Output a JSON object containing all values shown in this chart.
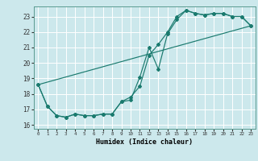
{
  "title": "",
  "xlabel": "Humidex (Indice chaleur)",
  "bg_color": "#cce8ec",
  "grid_color": "#ffffff",
  "line_color": "#1a7a6e",
  "xlim": [
    -0.5,
    23.5
  ],
  "ylim": [
    15.75,
    23.65
  ],
  "yticks": [
    16,
    17,
    18,
    19,
    20,
    21,
    22,
    23
  ],
  "xticks": [
    0,
    1,
    2,
    3,
    4,
    5,
    6,
    7,
    8,
    9,
    10,
    11,
    12,
    13,
    14,
    15,
    16,
    17,
    18,
    19,
    20,
    21,
    22,
    23
  ],
  "series1_x": [
    0,
    1,
    2,
    3,
    4,
    5,
    6,
    7,
    8,
    9,
    10,
    11,
    12,
    13,
    14,
    15,
    16,
    17,
    18,
    19,
    20,
    21,
    22,
    23
  ],
  "series1_y": [
    18.6,
    17.2,
    16.6,
    16.5,
    16.7,
    16.6,
    16.6,
    16.7,
    16.7,
    17.5,
    17.6,
    19.1,
    21.0,
    19.6,
    21.9,
    22.8,
    23.4,
    23.2,
    23.1,
    23.2,
    23.2,
    23.0,
    23.0,
    22.4
  ],
  "series2_x": [
    0,
    1,
    2,
    3,
    4,
    5,
    6,
    7,
    8,
    9,
    10,
    11,
    12,
    13,
    14,
    15,
    16,
    17,
    18,
    19,
    20,
    21,
    22,
    23
  ],
  "series2_y": [
    18.6,
    17.2,
    16.6,
    16.5,
    16.7,
    16.6,
    16.6,
    16.7,
    16.7,
    17.5,
    17.8,
    18.5,
    20.5,
    21.2,
    22.0,
    23.0,
    23.4,
    23.2,
    23.1,
    23.2,
    23.2,
    23.0,
    23.0,
    22.4
  ],
  "series3_x": [
    0,
    23
  ],
  "series3_y": [
    18.6,
    22.4
  ]
}
